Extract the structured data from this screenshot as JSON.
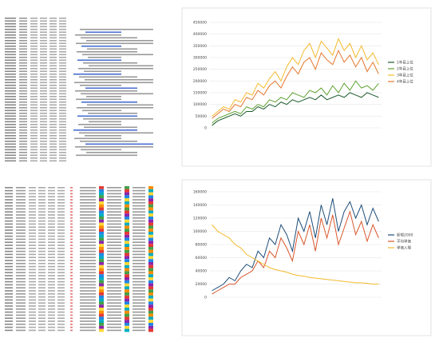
{
  "chart_data": [
    {
      "type": "line",
      "categories": [
        null,
        null,
        null,
        null,
        null,
        null,
        null,
        null,
        null,
        null,
        null,
        null,
        null,
        null,
        null,
        null,
        null,
        null,
        null,
        null,
        null,
        null,
        null,
        null,
        null,
        null,
        null,
        null,
        null,
        null
      ],
      "ylim": [
        0,
        450000
      ],
      "yticks": [
        0,
        50000,
        100000,
        150000,
        200000,
        250000,
        300000,
        350000,
        400000,
        450000
      ],
      "grid": true,
      "legend": "right",
      "series": [
        {
          "name": "1年目上位",
          "color": "#1e5c2e",
          "values": [
            10000,
            30000,
            40000,
            50000,
            60000,
            50000,
            70000,
            70000,
            90000,
            80000,
            100000,
            90000,
            110000,
            100000,
            120000,
            110000,
            120000,
            130000,
            120000,
            140000,
            120000,
            130000,
            140000,
            130000,
            150000,
            140000,
            130000,
            150000,
            140000,
            130000
          ]
        },
        {
          "name": "2年目上位",
          "color": "#5fa132",
          "values": [
            20000,
            40000,
            50000,
            60000,
            70000,
            60000,
            90000,
            80000,
            100000,
            90000,
            120000,
            110000,
            130000,
            120000,
            150000,
            140000,
            130000,
            160000,
            150000,
            170000,
            140000,
            180000,
            150000,
            190000,
            160000,
            200000,
            170000,
            180000,
            160000,
            190000
          ]
        },
        {
          "name": "3年目上位",
          "color": "#f4b92c",
          "values": [
            50000,
            70000,
            90000,
            80000,
            120000,
            110000,
            150000,
            140000,
            190000,
            170000,
            210000,
            240000,
            200000,
            260000,
            300000,
            270000,
            330000,
            360000,
            300000,
            370000,
            340000,
            310000,
            380000,
            330000,
            360000,
            300000,
            350000,
            290000,
            320000,
            270000
          ]
        },
        {
          "name": "4年目上位",
          "color": "#e5772e",
          "values": [
            40000,
            60000,
            80000,
            70000,
            100000,
            90000,
            130000,
            120000,
            160000,
            140000,
            180000,
            200000,
            170000,
            220000,
            260000,
            230000,
            280000,
            300000,
            250000,
            320000,
            290000,
            270000,
            330000,
            280000,
            310000,
            260000,
            300000,
            240000,
            280000,
            230000
          ]
        }
      ]
    },
    {
      "type": "line",
      "categories": [
        null,
        null,
        null,
        null,
        null,
        null,
        null,
        null,
        null,
        null,
        null,
        null,
        null,
        null,
        null,
        null,
        null,
        null,
        null,
        null,
        null,
        null,
        null,
        null,
        null,
        null,
        null,
        null,
        null,
        null
      ],
      "ylim": [
        0,
        160000
      ],
      "yticks": [
        0,
        20000,
        40000,
        60000,
        80000,
        100000,
        120000,
        140000,
        160000
      ],
      "grid": true,
      "legend": "right",
      "series": [
        {
          "name": "新規2000",
          "color": "#1f4e79",
          "values": [
            10000,
            15000,
            20000,
            30000,
            25000,
            40000,
            50000,
            45000,
            70000,
            60000,
            90000,
            80000,
            110000,
            95000,
            70000,
            120000,
            100000,
            130000,
            90000,
            140000,
            110000,
            150000,
            100000,
            130000,
            145000,
            120000,
            140000,
            110000,
            135000,
            115000
          ]
        },
        {
          "name": "平均単価",
          "color": "#d9572b",
          "values": [
            5000,
            10000,
            15000,
            20000,
            20000,
            30000,
            35000,
            40000,
            55000,
            45000,
            70000,
            60000,
            90000,
            75000,
            55000,
            100000,
            80000,
            110000,
            70000,
            120000,
            90000,
            125000,
            80000,
            105000,
            130000,
            95000,
            115000,
            85000,
            110000,
            90000
          ]
        },
        {
          "name": "単価入場",
          "color": "#f4b92c",
          "values": [
            110000,
            100000,
            95000,
            90000,
            80000,
            75000,
            65000,
            60000,
            55000,
            50000,
            45000,
            42000,
            40000,
            38000,
            35000,
            33000,
            32000,
            30000,
            29000,
            28000,
            27000,
            26000,
            25000,
            24000,
            23000,
            22000,
            22000,
            21000,
            20000,
            20000
          ]
        }
      ]
    }
  ]
}
